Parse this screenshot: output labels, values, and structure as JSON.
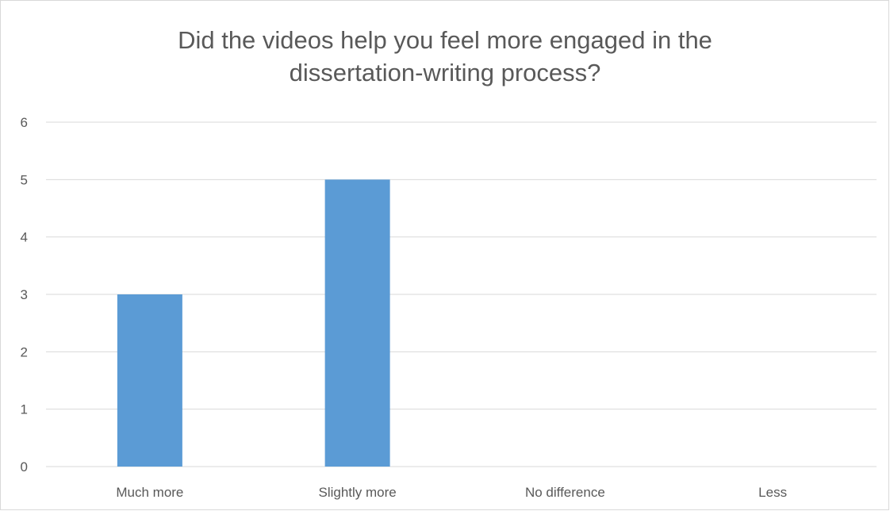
{
  "chart_data": {
    "type": "bar",
    "title": "Did the videos help you feel more engaged in the\ndissertation-writing process?",
    "categories": [
      "Much more",
      "Slightly more",
      "No difference",
      "Less"
    ],
    "values": [
      3,
      5,
      0,
      0
    ],
    "xlabel": "",
    "ylabel": "",
    "ylim": [
      0,
      6
    ],
    "yticks": [
      0,
      1,
      2,
      3,
      4,
      5,
      6
    ],
    "grid": true,
    "legend": "none",
    "bar_color": "#5b9bd5",
    "grid_color": "#d9d9d9",
    "text_color": "#595959"
  }
}
